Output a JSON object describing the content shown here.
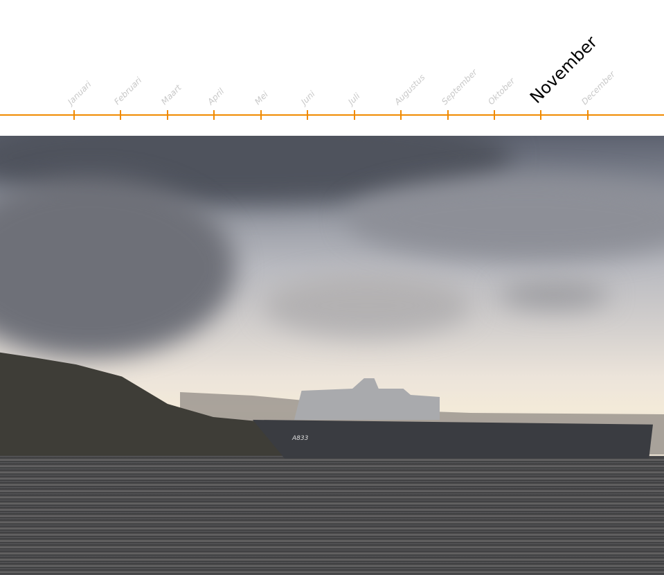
{
  "timeline": {
    "accent_color": "#f08a00",
    "months": [
      "Januari",
      "Februari",
      "Maart",
      "April",
      "Mei",
      "Juni",
      "Juli",
      "Augustus",
      "September",
      "Oktober",
      "November",
      "December"
    ],
    "active_month": "November"
  },
  "photo": {
    "hull_number": "A833"
  }
}
